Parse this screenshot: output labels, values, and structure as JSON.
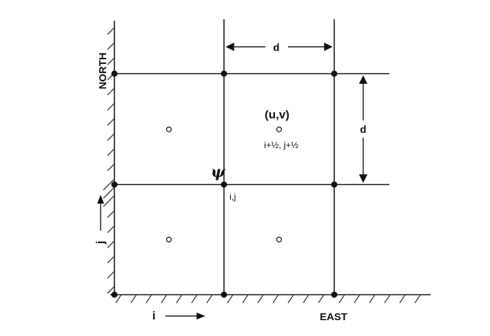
{
  "diagram": {
    "labels": {
      "north": "NORTH",
      "east": "EAST",
      "spacing_horizontal": "d",
      "spacing_vertical": "d",
      "stream_function": "ψ",
      "node_index": "i,j",
      "velocity": "(u,v)",
      "velocity_index": "i+½, j+½",
      "axis_i": "i",
      "axis_j": "j"
    },
    "colors": {
      "ink": "#111111",
      "background": "#ffffff"
    }
  }
}
